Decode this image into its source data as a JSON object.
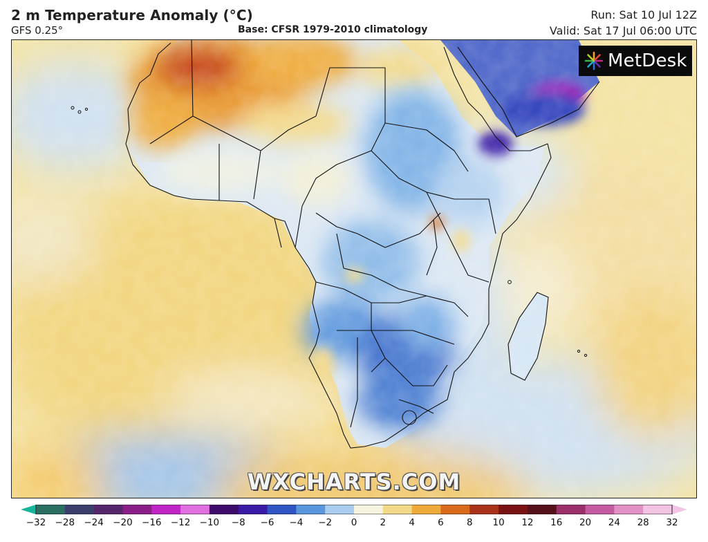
{
  "header": {
    "title": "2 m Temperature Anomaly (°C)",
    "model": "GFS 0.25°",
    "base": "Base: CFSR 1979-2010 climatology",
    "run": "Run: Sat 10 Jul 12Z",
    "valid": "Valid: Sat 17 Jul 06:00 UTC"
  },
  "brand": {
    "name": "MetDesk",
    "icon": "metdesk-sunburst-icon"
  },
  "watermark": "WXCHARTS.COM",
  "legend": {
    "ticks": [
      "−32",
      "−28",
      "−24",
      "−20",
      "−16",
      "−12",
      "−10",
      "−8",
      "−6",
      "−4",
      "−2",
      "0",
      "2",
      "4",
      "6",
      "8",
      "10",
      "12",
      "16",
      "20",
      "24",
      "28",
      "32"
    ],
    "colors": [
      "#17b69a",
      "#2b6f62",
      "#3a3f6e",
      "#56266d",
      "#8a1d88",
      "#c024c6",
      "#e070e0",
      "#3d0b6b",
      "#3a1aa6",
      "#2f55c4",
      "#5a96dd",
      "#a9cdef",
      "#f6f4e0",
      "#f3d98a",
      "#eeaa3a",
      "#d96a1c",
      "#a9331a",
      "#7a1214",
      "#561019",
      "#9a2f6a",
      "#c45aa0",
      "#e191c6",
      "#f2c3e3"
    ]
  }
}
